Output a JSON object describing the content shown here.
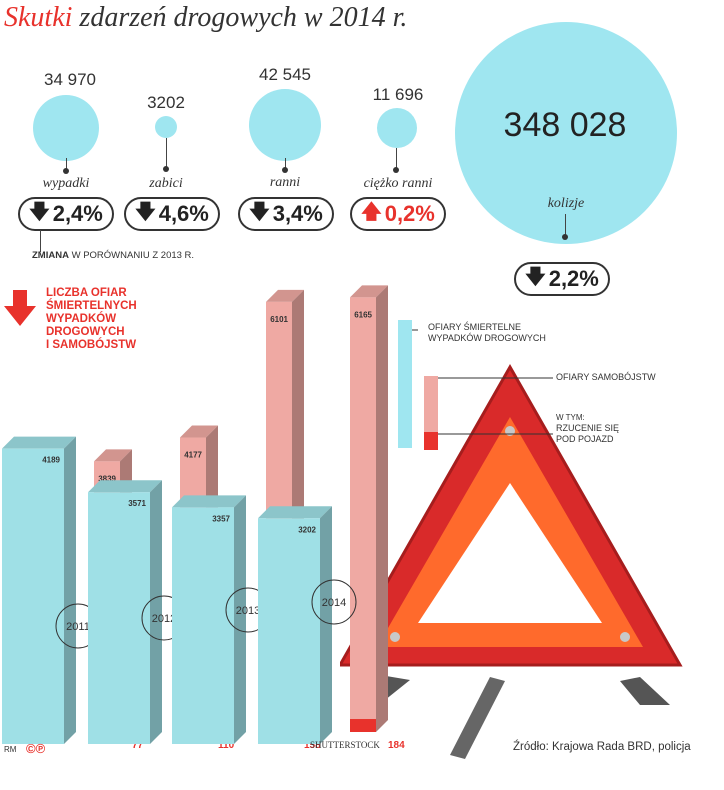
{
  "title": {
    "accent": "Skutki",
    "rest": " zdarzeń drogowych w 2014 r."
  },
  "stats": [
    {
      "value": "34 970",
      "label": "wypadki",
      "change": "2,4%",
      "direction": "down"
    },
    {
      "value": "3202",
      "label": "zabici",
      "change": "4,6%",
      "direction": "down"
    },
    {
      "value": "42 545",
      "label": "ranni",
      "change": "3,4%",
      "direction": "down"
    },
    {
      "value": "11 696",
      "label": "ciężko ranni",
      "change": "0,2%",
      "direction": "up"
    },
    {
      "value": "348 028",
      "label": "kolizje",
      "change": "2,2%",
      "direction": "down"
    }
  ],
  "change_note": {
    "bold": "ZMIANA",
    "rest": " W PORÓWNANIU Z 2013 R."
  },
  "chart_heading": [
    "LICZBA OFIAR",
    "ŚMIERTELNYCH",
    "WYPADKÓW",
    "DROGOWYCH",
    "I SAMOBÓJSTW"
  ],
  "legend": {
    "road": [
      "OFIARY ŚMIERTELNE",
      "WYPADKÓW DROGOWYCH"
    ],
    "suicide": "OFIARY SAMOBÓJSTW",
    "in_that_prefix": "W TYM:",
    "under_vehicle": [
      "RZUCENIE SIĘ",
      "POD POJAZD"
    ]
  },
  "colors": {
    "accent": "#e8322c",
    "road": "#9fe0e6",
    "suicide": "#efa9a3",
    "under_vehicle": "#e8322c",
    "circle": "#9fe6f0"
  },
  "credits": {
    "author": "RM",
    "copyright": "©℗",
    "photo": "SHUTTERSTOCK",
    "source": "Źródło: Krajowa Rada BRD, policja"
  },
  "chart_data": {
    "type": "bar",
    "categories": [
      "2011",
      "2012",
      "2013",
      "2014"
    ],
    "series": [
      {
        "name": "OFIARY ŚMIERTELNE WYPADKÓW DROGOWYCH",
        "values": [
          4189,
          3571,
          3357,
          3202
        ]
      },
      {
        "name": "OFIARY SAMOBÓJSTW",
        "values": [
          3839,
          4177,
          6101,
          6165
        ]
      },
      {
        "name": "RZUCENIE SIĘ POD POJAZD",
        "values": [
          77,
          110,
          158,
          184
        ]
      }
    ]
  }
}
